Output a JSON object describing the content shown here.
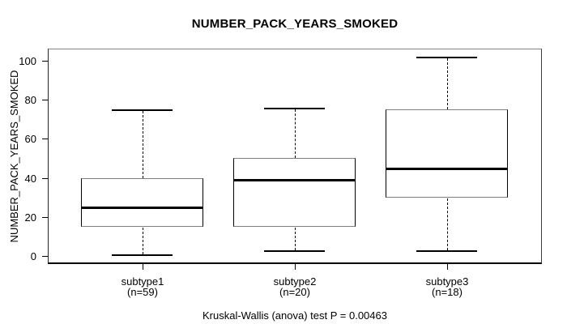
{
  "chart_data": {
    "type": "boxplot",
    "title": "NUMBER_PACK_YEARS_SMOKED",
    "y_axis_label": "NUMBER_PACK_YEARS_SMOKED",
    "caption": "Kruskal-Wallis (anova) test P = 0.00463",
    "yticks": [
      0,
      20,
      40,
      60,
      80,
      100
    ],
    "ylim": [
      -4,
      106
    ],
    "grid": false,
    "legend": "none",
    "groups": [
      {
        "label": "subtype1",
        "n_label": "(n=59)",
        "n": 59,
        "whisker_low": 1,
        "q1": 15,
        "median": 25,
        "q3": 40,
        "whisker_high": 75
      },
      {
        "label": "subtype2",
        "n_label": "(n=20)",
        "n": 20,
        "whisker_low": 3,
        "q1": 15,
        "median": 39,
        "q3": 50,
        "whisker_high": 76
      },
      {
        "label": "subtype3",
        "n_label": "(n=18)",
        "n": 18,
        "whisker_low": 3,
        "q1": 30,
        "median": 45,
        "q3": 75,
        "whisker_high": 102
      }
    ],
    "colors": {
      "line": "#000000",
      "box_horizontal_edge": "#808080",
      "frame_top": "#848484",
      "background": "#ffffff",
      "text": "#000000"
    }
  }
}
